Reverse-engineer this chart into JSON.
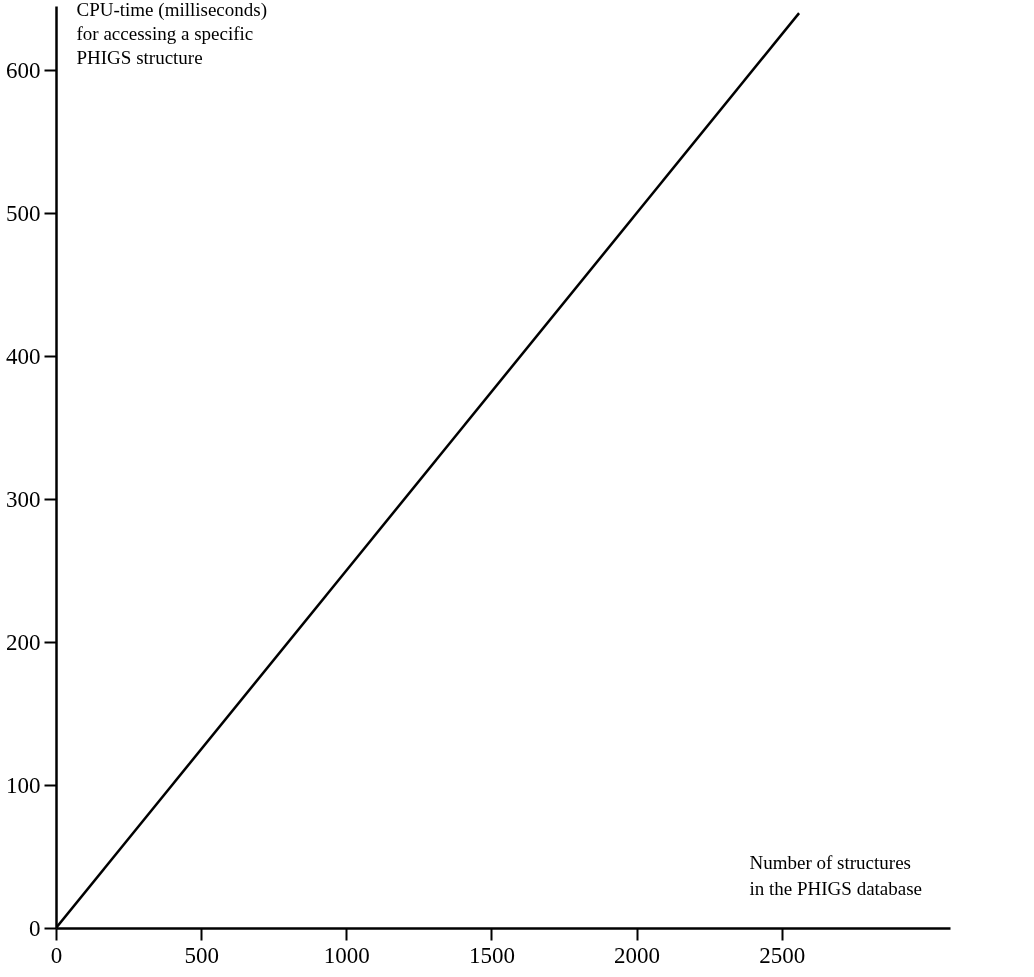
{
  "chart_data": {
    "type": "line",
    "xlabel": "Number of structures\nin the PHIGS database",
    "ylabel": "CPU-time (milliseconds)\nfor accessing a specific\nPHIGS structure",
    "x": [
      0,
      2560
    ],
    "values": [
      0,
      640
    ],
    "color": "#000000",
    "xlim": [
      0,
      3080
    ],
    "ylim": [
      0,
      645
    ],
    "xticks": [
      0,
      500,
      1000,
      1500,
      2000,
      2500
    ],
    "yticks": [
      0,
      100,
      200,
      300,
      400,
      500,
      600
    ],
    "grid": false
  }
}
